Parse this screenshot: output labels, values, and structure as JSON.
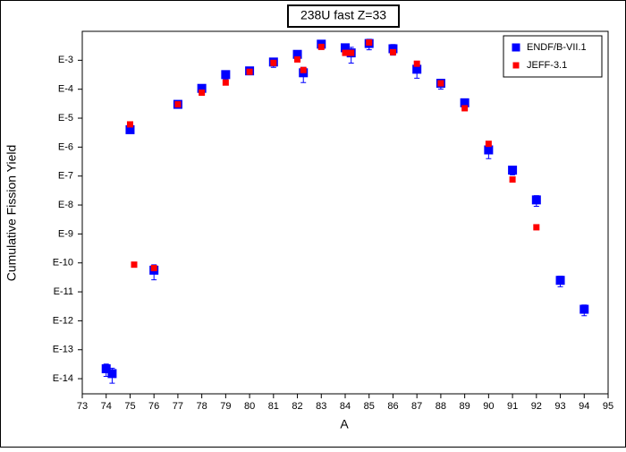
{
  "chart_data": {
    "type": "scatter",
    "title": "238U fast Z=33",
    "xlabel": "A",
    "ylabel": "Cumulative Fission Yield",
    "log_y": true,
    "legend": "top-right",
    "xlim": [
      73,
      95
    ],
    "xticks": [
      73,
      74,
      75,
      76,
      77,
      78,
      79,
      80,
      81,
      82,
      83,
      84,
      85,
      86,
      87,
      88,
      89,
      90,
      91,
      92,
      93,
      94,
      95
    ],
    "ylim": [
      3e-15,
      0.01
    ],
    "yticks": [
      {
        "value": 0.001,
        "label": "E-3"
      },
      {
        "value": 0.0001,
        "label": "E-4"
      },
      {
        "value": 1e-05,
        "label": "E-5"
      },
      {
        "value": 1e-06,
        "label": "E-6"
      },
      {
        "value": 1e-07,
        "label": "E-7"
      },
      {
        "value": 1e-08,
        "label": "E-8"
      },
      {
        "value": 1e-09,
        "label": "E-9"
      },
      {
        "value": 1e-10,
        "label": "E-10"
      },
      {
        "value": 1e-11,
        "label": "E-11"
      },
      {
        "value": 1e-12,
        "label": "E-12"
      },
      {
        "value": 1e-13,
        "label": "E-13"
      },
      {
        "value": 1e-14,
        "label": "E-14"
      }
    ],
    "series": [
      {
        "name": "ENDF/B-VII.1",
        "color": "#0000ff",
        "x": [
          74,
          74.25,
          75,
          76,
          77,
          78,
          79,
          80,
          81,
          82,
          82.25,
          83,
          84,
          84.25,
          85,
          86,
          87,
          88,
          89,
          90,
          91,
          92,
          93,
          94
        ],
        "values": [
          2.2e-14,
          1.5e-14,
          4e-06,
          5.6e-11,
          3e-05,
          0.000107,
          0.00032,
          0.00043,
          0.00087,
          0.0016,
          0.00037,
          0.0036,
          0.0027,
          0.0018,
          0.0038,
          0.0025,
          0.00049,
          0.00016,
          3.4e-05,
          8e-07,
          1.6e-07,
          1.5e-08,
          2.5e-11,
          2.5e-12
        ],
        "errors": [
          1e-14,
          8e-15,
          1e-06,
          3e-11,
          5e-06,
          2e-05,
          0.0001,
          0.0001,
          0.0003,
          0.0005,
          0.0002,
          0.001,
          0.001,
          0.001,
          0.0015,
          0.001,
          0.00025,
          6e-05,
          1e-05,
          4e-07,
          5e-08,
          6e-09,
          1e-11,
          1e-12
        ]
      },
      {
        "name": "JEFF-3.1",
        "color": "#ff0000",
        "x": [
          75,
          75.17,
          76,
          77,
          78,
          79,
          80,
          81,
          82,
          82.25,
          83,
          84,
          84.25,
          85,
          86,
          87,
          88,
          89,
          90,
          91,
          92
        ],
        "values": [
          6.1e-06,
          8.7e-11,
          6.6e-11,
          3e-05,
          7.6e-05,
          0.00017,
          0.0004,
          0.00081,
          0.00107,
          0.00046,
          0.0029,
          0.0018,
          0.0018,
          0.0041,
          0.0019,
          0.00076,
          0.00016,
          2.2e-05,
          1.3e-06,
          7.6e-08,
          1.7e-09
        ]
      }
    ]
  }
}
